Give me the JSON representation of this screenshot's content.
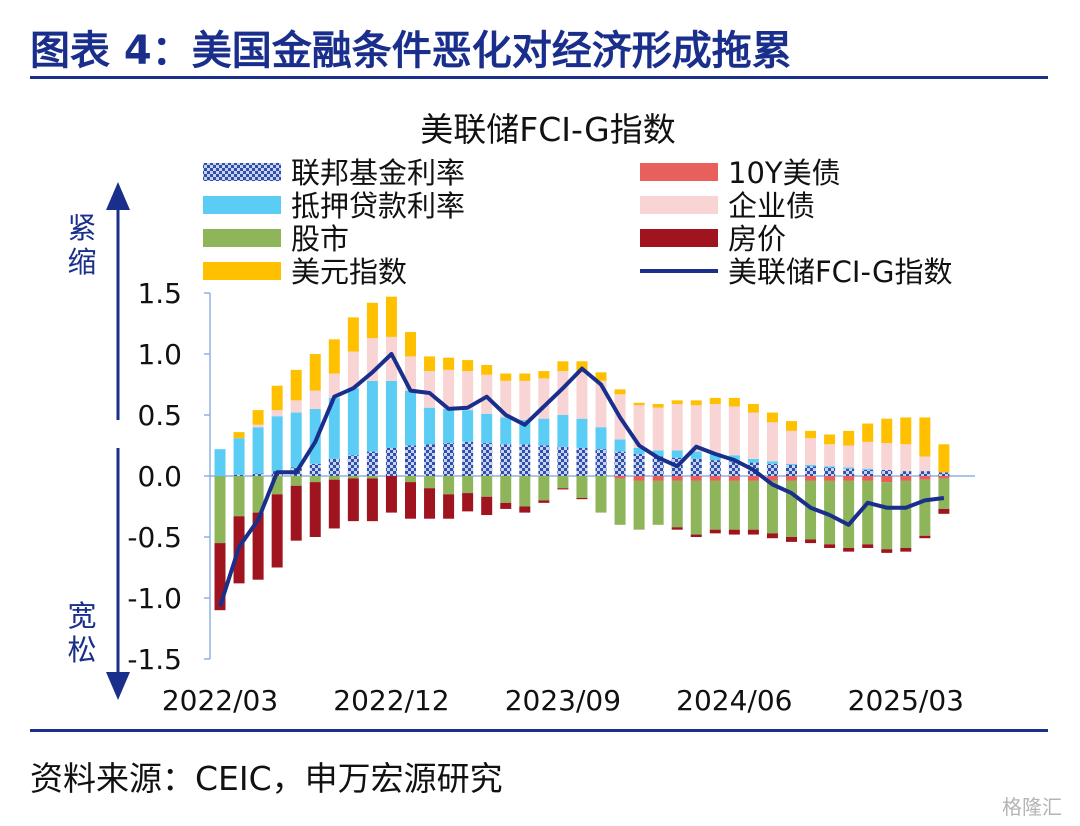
{
  "header": {
    "title": "图表 4：美国金融条件恶化对经济形成拖累"
  },
  "footer": {
    "source": "资料来源：CEIC，申万宏源研究",
    "watermark": "格隆汇"
  },
  "chart_data": {
    "type": "bar",
    "title": "美联储FCI-G指数",
    "ylim": [
      -1.5,
      1.5
    ],
    "yticks": [
      "1.5",
      "1.0",
      "0.5",
      "0.0",
      "-0.5",
      "-1.0",
      "-1.5"
    ],
    "xtick_labels": [
      "2022/03",
      "2022/12",
      "2023/09",
      "2024/06",
      "2025/03"
    ],
    "axis_annotations": {
      "top": "紧缩",
      "bottom": "宽松"
    },
    "categories": [
      "2022/03",
      "2022/04",
      "2022/05",
      "2022/06",
      "2022/07",
      "2022/08",
      "2022/09",
      "2022/10",
      "2022/11",
      "2022/12",
      "2023/01",
      "2023/02",
      "2023/03",
      "2023/04",
      "2023/05",
      "2023/06",
      "2023/07",
      "2023/08",
      "2023/09",
      "2023/10",
      "2023/11",
      "2023/12",
      "2024/01",
      "2024/02",
      "2024/03",
      "2024/04",
      "2024/05",
      "2024/06",
      "2024/07",
      "2024/08",
      "2024/09",
      "2024/10",
      "2024/11",
      "2024/12",
      "2025/01",
      "2025/02",
      "2025/03",
      "2025/04",
      "2025/05"
    ],
    "series": [
      {
        "name": "联邦基金利率",
        "color": "#2f4fa8",
        "pattern": "checker",
        "values": [
          0,
          0.01,
          0.02,
          0.04,
          0.07,
          0.1,
          0.14,
          0.17,
          0.2,
          0.23,
          0.25,
          0.26,
          0.27,
          0.28,
          0.27,
          0.26,
          0.26,
          0.25,
          0.24,
          0.23,
          0.22,
          0.2,
          0.18,
          0.16,
          0.15,
          0.14,
          0.13,
          0.12,
          0.11,
          0.1,
          0.09,
          0.08,
          0.07,
          0.06,
          0.05,
          0.05,
          0.04,
          0.04,
          0.03
        ]
      },
      {
        "name": "抵押贷款利率",
        "color": "#5bcdf5",
        "values": [
          0.22,
          0.3,
          0.38,
          0.45,
          0.45,
          0.45,
          0.5,
          0.55,
          0.58,
          0.55,
          0.45,
          0.3,
          0.28,
          0.26,
          0.24,
          0.22,
          0.2,
          0.22,
          0.26,
          0.24,
          0.18,
          0.1,
          0.05,
          0.05,
          0.06,
          0.06,
          0.06,
          0.05,
          0.03,
          0.02,
          0.01,
          0.01,
          0.01,
          0.01,
          0.01,
          0,
          0,
          0,
          0
        ]
      },
      {
        "name": "10Y美债",
        "color": "#e8605b",
        "values": [
          0,
          0,
          0,
          0,
          0,
          0,
          0,
          0,
          0,
          0,
          0,
          0,
          0,
          0,
          0,
          0,
          0,
          0,
          0,
          0,
          0,
          -0.02,
          -0.04,
          -0.04,
          -0.04,
          -0.04,
          -0.04,
          -0.04,
          -0.04,
          -0.04,
          -0.04,
          -0.04,
          -0.04,
          -0.04,
          -0.04,
          -0.05,
          -0.04,
          -0.03,
          -0.02
        ]
      },
      {
        "name": "企业债",
        "color": "#f8d4d4",
        "values": [
          0,
          0,
          0.02,
          0.05,
          0.1,
          0.15,
          0.2,
          0.3,
          0.35,
          0.36,
          0.28,
          0.3,
          0.32,
          0.32,
          0.32,
          0.3,
          0.32,
          0.33,
          0.36,
          0.38,
          0.38,
          0.37,
          0.35,
          0.35,
          0.38,
          0.38,
          0.4,
          0.4,
          0.38,
          0.32,
          0.27,
          0.22,
          0.18,
          0.18,
          0.22,
          0.22,
          0.22,
          0.12,
          0
        ]
      },
      {
        "name": "股市",
        "color": "#8fb55a",
        "values": [
          -0.55,
          -0.33,
          -0.3,
          -0.15,
          -0.08,
          -0.05,
          -0.03,
          -0.02,
          -0.02,
          0,
          -0.05,
          -0.1,
          -0.15,
          -0.14,
          -0.17,
          -0.22,
          -0.25,
          -0.2,
          -0.1,
          -0.18,
          -0.3,
          -0.38,
          -0.4,
          -0.36,
          -0.38,
          -0.44,
          -0.4,
          -0.4,
          -0.4,
          -0.43,
          -0.46,
          -0.48,
          -0.52,
          -0.55,
          -0.52,
          -0.55,
          -0.55,
          -0.46,
          -0.25
        ]
      },
      {
        "name": "房价",
        "color": "#a01420",
        "values": [
          -0.55,
          -0.55,
          -0.55,
          -0.6,
          -0.45,
          -0.45,
          -0.4,
          -0.35,
          -0.35,
          -0.3,
          -0.3,
          -0.25,
          -0.2,
          -0.15,
          -0.15,
          -0.05,
          -0.05,
          -0.02,
          -0.01,
          -0.01,
          0,
          0,
          0,
          0,
          -0.02,
          -0.02,
          -0.03,
          -0.04,
          -0.04,
          -0.04,
          -0.04,
          -0.03,
          -0.03,
          -0.03,
          -0.03,
          -0.03,
          -0.03,
          -0.02,
          -0.04
        ]
      },
      {
        "name": "美元指数",
        "color": "#ffc000",
        "values": [
          0,
          0.05,
          0.12,
          0.2,
          0.25,
          0.3,
          0.28,
          0.28,
          0.29,
          0.33,
          0.2,
          0.12,
          0.1,
          0.09,
          0.08,
          0.06,
          0.06,
          0.06,
          0.08,
          0.09,
          0.07,
          0.04,
          0.02,
          0.03,
          0.03,
          0.04,
          0.05,
          0.07,
          0.07,
          0.08,
          0.08,
          0.06,
          0.08,
          0.12,
          0.15,
          0.2,
          0.22,
          0.32,
          0.23
        ]
      },
      {
        "name": "美联储FCI-G指数",
        "color": "#1a2f8c",
        "type": "line",
        "values": [
          -1.07,
          -0.58,
          -0.36,
          0.03,
          0.03,
          0.28,
          0.65,
          0.72,
          0.85,
          1.0,
          0.7,
          0.68,
          0.55,
          0.56,
          0.65,
          0.5,
          0.42,
          0.57,
          0.72,
          0.88,
          0.75,
          0.48,
          0.25,
          0.15,
          0.08,
          0.24,
          0.18,
          0.13,
          0.05,
          -0.07,
          -0.14,
          -0.26,
          -0.32,
          -0.4,
          -0.22,
          -0.26,
          -0.26,
          -0.2,
          -0.18
        ]
      }
    ],
    "legend": {
      "placement": "top",
      "columns": 2
    }
  }
}
